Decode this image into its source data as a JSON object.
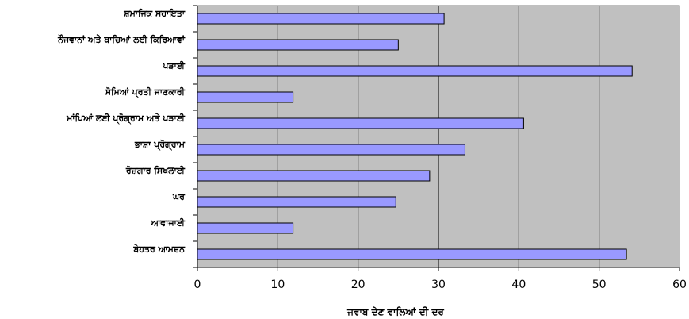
{
  "chart_data": {
    "type": "bar",
    "orientation": "horizontal",
    "categories": [
      "ਸ਼ਮਾਜਿਕ ਸਹਾਇਤਾ",
      "ਨੌਜਵਾਨਾਂ ਅਤੇ ਬਾਚਿਆਂ ਲਈ ਕਿਰਿਆਵਾਂ",
      "ਪੜਾਈ",
      "ਸੋਮਿਆਂ ਪ੍ਰਤੀ ਜਾਣਕਾਰੀ",
      "ਮਾਂਪਿਆਂ ਲਈ ਪ੍ਰੋਗ੍ਰਾਮ ਅਤੇ ਪੜਾਈ",
      "ਭਾਸ਼ਾ ਪ੍ਰੋਗ੍ਰਾਮ",
      "ਰੋਜ਼ਗਾਰ ਸਿਖਲਾਈ",
      "ਘਰ",
      "ਆਵਾਜਾਈ",
      "ਬੇਹਤਰ ਆਮਦਨ"
    ],
    "values": [
      30.7,
      25.0,
      54.1,
      11.9,
      40.6,
      33.3,
      28.9,
      24.7,
      11.9,
      53.4
    ],
    "xlim": [
      0,
      60
    ],
    "xticks": [
      0,
      10,
      20,
      30,
      40,
      50,
      60
    ],
    "xlabel": "ਜਵਾਬ ਦੇਣ ਵਾਲਿਆਂ ਦੀ ਦਰ",
    "ylabel": "",
    "title": "",
    "grid": true,
    "colors": {
      "bar_fill": "#9999ff",
      "bar_stroke": "#000000",
      "plot_bg": "#c0c0c0",
      "grid": "#000000"
    }
  }
}
